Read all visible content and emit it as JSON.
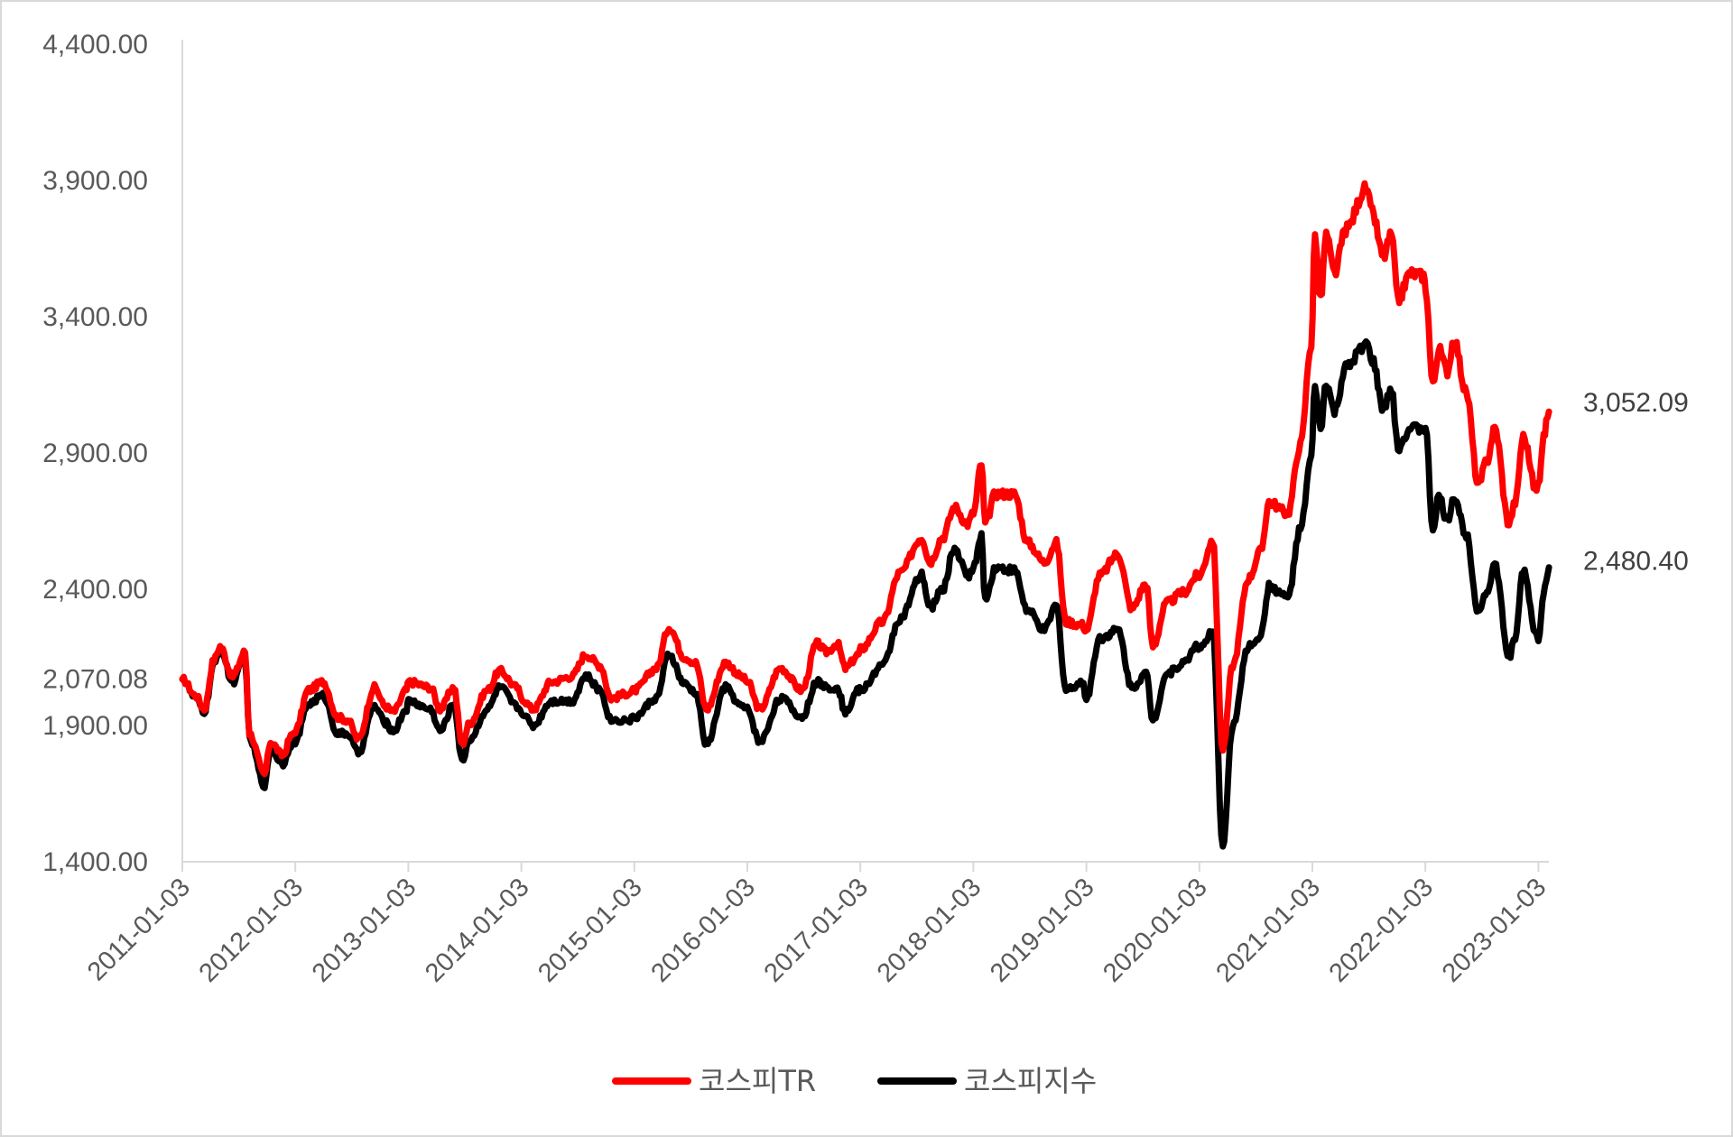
{
  "chart_data": {
    "type": "line",
    "title": "",
    "xlabel": "",
    "ylabel": "",
    "ylim": [
      1400,
      4400
    ],
    "y_ticks": [
      {
        "value": 4400,
        "label": "4,400.00"
      },
      {
        "value": 3900,
        "label": "3,900.00"
      },
      {
        "value": 3400,
        "label": "3,400.00"
      },
      {
        "value": 2900,
        "label": "2,900.00"
      },
      {
        "value": 2400,
        "label": "2,400.00"
      },
      {
        "value": 2070.08,
        "label": "2,070.08"
      },
      {
        "value": 1900,
        "label": "1,900.00"
      },
      {
        "value": 1400,
        "label": "1,400.00"
      }
    ],
    "x_ticks": [
      "2011-01-03",
      "2012-01-03",
      "2013-01-03",
      "2014-01-03",
      "2015-01-03",
      "2016-01-03",
      "2017-01-03",
      "2018-01-03",
      "2019-01-03",
      "2020-01-03",
      "2021-01-03",
      "2022-01-03",
      "2023-01-03"
    ],
    "legend_position": "bottom",
    "series": [
      {
        "name": "코스피TR",
        "color": "#ff0000",
        "end_label": "3,052.09",
        "points": [
          [
            "2011-01-03",
            2070
          ],
          [
            "2011-02-15",
            2010
          ],
          [
            "2011-03-15",
            1960
          ],
          [
            "2011-04-15",
            2140
          ],
          [
            "2011-05-05",
            2190
          ],
          [
            "2011-06-15",
            2080
          ],
          [
            "2011-07-25",
            2170
          ],
          [
            "2011-08-08",
            1870
          ],
          [
            "2011-09-26",
            1720
          ],
          [
            "2011-10-15",
            1840
          ],
          [
            "2011-11-25",
            1790
          ],
          [
            "2011-12-20",
            1860
          ],
          [
            "2012-01-03",
            1880
          ],
          [
            "2012-02-15",
            2030
          ],
          [
            "2012-04-02",
            2060
          ],
          [
            "2012-05-20",
            1930
          ],
          [
            "2012-06-20",
            1920
          ],
          [
            "2012-07-25",
            1850
          ],
          [
            "2012-09-15",
            2040
          ],
          [
            "2012-10-20",
            1970
          ],
          [
            "2012-11-15",
            1950
          ],
          [
            "2012-12-28",
            2030
          ],
          [
            "2013-01-03",
            2060
          ],
          [
            "2013-03-15",
            2040
          ],
          [
            "2013-04-15",
            1960
          ],
          [
            "2013-05-30",
            2040
          ],
          [
            "2013-06-25",
            1830
          ],
          [
            "2013-07-20",
            1910
          ],
          [
            "2013-09-15",
            2030
          ],
          [
            "2013-10-25",
            2100
          ],
          [
            "2013-12-20",
            2040
          ],
          [
            "2014-01-03",
            2000
          ],
          [
            "2014-02-10",
            1960
          ],
          [
            "2014-04-10",
            2060
          ],
          [
            "2014-06-15",
            2080
          ],
          [
            "2014-07-30",
            2160
          ],
          [
            "2014-09-15",
            2120
          ],
          [
            "2014-10-20",
            2000
          ],
          [
            "2014-12-20",
            2020
          ],
          [
            "2015-01-03",
            2030
          ],
          [
            "2015-03-15",
            2110
          ],
          [
            "2015-04-25",
            2260
          ],
          [
            "2015-06-15",
            2150
          ],
          [
            "2015-07-20",
            2130
          ],
          [
            "2015-08-24",
            1960
          ],
          [
            "2015-10-25",
            2130
          ],
          [
            "2015-12-15",
            2080
          ],
          [
            "2016-01-03",
            2060
          ],
          [
            "2016-02-12",
            1960
          ],
          [
            "2016-04-20",
            2110
          ],
          [
            "2016-06-28",
            2030
          ],
          [
            "2016-08-15",
            2200
          ],
          [
            "2016-09-15",
            2170
          ],
          [
            "2016-10-20",
            2200
          ],
          [
            "2016-11-15",
            2110
          ],
          [
            "2016-12-28",
            2160
          ],
          [
            "2017-01-03",
            2180
          ],
          [
            "2017-03-15",
            2280
          ],
          [
            "2017-05-10",
            2460
          ],
          [
            "2017-07-20",
            2590
          ],
          [
            "2017-08-15",
            2500
          ],
          [
            "2017-09-25",
            2590
          ],
          [
            "2017-11-03",
            2700
          ],
          [
            "2017-12-15",
            2640
          ],
          [
            "2018-01-03",
            2680
          ],
          [
            "2018-01-29",
            2860
          ],
          [
            "2018-02-10",
            2640
          ],
          [
            "2018-03-15",
            2750
          ],
          [
            "2018-05-15",
            2750
          ],
          [
            "2018-06-28",
            2570
          ],
          [
            "2018-08-20",
            2500
          ],
          [
            "2018-09-28",
            2570
          ],
          [
            "2018-10-29",
            2280
          ],
          [
            "2018-12-20",
            2270
          ],
          [
            "2019-01-03",
            2250
          ],
          [
            "2019-02-15",
            2450
          ],
          [
            "2019-04-15",
            2530
          ],
          [
            "2019-05-30",
            2330
          ],
          [
            "2019-07-15",
            2420
          ],
          [
            "2019-08-06",
            2190
          ],
          [
            "2019-09-20",
            2350
          ],
          [
            "2019-11-15",
            2390
          ],
          [
            "2019-12-28",
            2450
          ],
          [
            "2020-01-03",
            2450
          ],
          [
            "2020-02-15",
            2580
          ],
          [
            "2020-03-19",
            1810
          ],
          [
            "2020-04-20",
            2120
          ],
          [
            "2020-06-10",
            2440
          ],
          [
            "2020-07-20",
            2540
          ],
          [
            "2020-08-15",
            2720
          ],
          [
            "2020-10-15",
            2680
          ],
          [
            "2020-11-25",
            2930
          ],
          [
            "2020-12-30",
            3300
          ],
          [
            "2021-01-11",
            3700
          ],
          [
            "2021-01-29",
            3460
          ],
          [
            "2021-02-16",
            3700
          ],
          [
            "2021-03-15",
            3560
          ],
          [
            "2021-04-20",
            3720
          ],
          [
            "2021-06-25",
            3870
          ],
          [
            "2021-07-15",
            3780
          ],
          [
            "2021-08-20",
            3620
          ],
          [
            "2021-09-15",
            3700
          ],
          [
            "2021-10-06",
            3460
          ],
          [
            "2021-11-15",
            3560
          ],
          [
            "2021-12-28",
            3550
          ],
          [
            "2022-01-03",
            3510
          ],
          [
            "2022-01-27",
            3150
          ],
          [
            "2022-02-15",
            3280
          ],
          [
            "2022-03-15",
            3200
          ],
          [
            "2022-04-05",
            3320
          ],
          [
            "2022-05-15",
            3120
          ],
          [
            "2022-06-23",
            2780
          ],
          [
            "2022-07-20",
            2870
          ],
          [
            "2022-08-15",
            2990
          ],
          [
            "2022-09-30",
            2640
          ],
          [
            "2022-10-20",
            2720
          ],
          [
            "2022-11-15",
            2960
          ],
          [
            "2022-12-28",
            2760
          ],
          [
            "2023-01-03",
            2790
          ],
          [
            "2023-01-20",
            2960
          ],
          [
            "2023-02-06",
            3052.09
          ]
        ]
      },
      {
        "name": "코스피지수",
        "color": "#000000",
        "end_label": "2,480.40",
        "points": [
          [
            "2011-01-03",
            2070
          ],
          [
            "2011-02-15",
            2000
          ],
          [
            "2011-03-15",
            1950
          ],
          [
            "2011-04-15",
            2120
          ],
          [
            "2011-05-05",
            2180
          ],
          [
            "2011-06-15",
            2060
          ],
          [
            "2011-07-25",
            2150
          ],
          [
            "2011-08-08",
            1850
          ],
          [
            "2011-09-26",
            1680
          ],
          [
            "2011-10-15",
            1810
          ],
          [
            "2011-11-25",
            1760
          ],
          [
            "2011-12-20",
            1830
          ],
          [
            "2012-01-03",
            1840
          ],
          [
            "2012-02-15",
            1980
          ],
          [
            "2012-04-02",
            2010
          ],
          [
            "2012-05-20",
            1870
          ],
          [
            "2012-06-20",
            1870
          ],
          [
            "2012-07-25",
            1800
          ],
          [
            "2012-09-15",
            1970
          ],
          [
            "2012-10-20",
            1910
          ],
          [
            "2012-11-15",
            1880
          ],
          [
            "2012-12-28",
            1960
          ],
          [
            "2013-01-03",
            1990
          ],
          [
            "2013-03-15",
            1960
          ],
          [
            "2013-04-15",
            1880
          ],
          [
            "2013-05-30",
            1980
          ],
          [
            "2013-06-25",
            1770
          ],
          [
            "2013-07-20",
            1850
          ],
          [
            "2013-09-15",
            1960
          ],
          [
            "2013-10-25",
            2040
          ],
          [
            "2013-12-20",
            1970
          ],
          [
            "2014-01-03",
            1950
          ],
          [
            "2014-02-10",
            1900
          ],
          [
            "2014-04-10",
            1990
          ],
          [
            "2014-06-15",
            1990
          ],
          [
            "2014-07-30",
            2080
          ],
          [
            "2014-09-15",
            2030
          ],
          [
            "2014-10-20",
            1920
          ],
          [
            "2014-12-20",
            1920
          ],
          [
            "2015-01-03",
            1930
          ],
          [
            "2015-03-15",
            2000
          ],
          [
            "2015-04-25",
            2160
          ],
          [
            "2015-06-15",
            2050
          ],
          [
            "2015-07-20",
            2020
          ],
          [
            "2015-08-24",
            1830
          ],
          [
            "2015-10-25",
            2040
          ],
          [
            "2015-12-15",
            1970
          ],
          [
            "2016-01-03",
            1960
          ],
          [
            "2016-02-12",
            1840
          ],
          [
            "2016-04-20",
            2000
          ],
          [
            "2016-06-28",
            1930
          ],
          [
            "2016-08-15",
            2060
          ],
          [
            "2016-09-15",
            2040
          ],
          [
            "2016-10-20",
            2040
          ],
          [
            "2016-11-15",
            1950
          ],
          [
            "2016-12-28",
            2030
          ],
          [
            "2017-01-03",
            2030
          ],
          [
            "2017-03-15",
            2120
          ],
          [
            "2017-05-10",
            2290
          ],
          [
            "2017-07-20",
            2450
          ],
          [
            "2017-08-15",
            2330
          ],
          [
            "2017-09-25",
            2400
          ],
          [
            "2017-11-03",
            2550
          ],
          [
            "2017-12-15",
            2450
          ],
          [
            "2018-01-03",
            2480
          ],
          [
            "2018-01-29",
            2590
          ],
          [
            "2018-02-10",
            2360
          ],
          [
            "2018-03-15",
            2480
          ],
          [
            "2018-05-15",
            2470
          ],
          [
            "2018-06-28",
            2320
          ],
          [
            "2018-08-20",
            2250
          ],
          [
            "2018-09-28",
            2340
          ],
          [
            "2018-10-29",
            2030
          ],
          [
            "2018-12-20",
            2060
          ],
          [
            "2019-01-03",
            2000
          ],
          [
            "2019-02-15",
            2220
          ],
          [
            "2019-04-15",
            2250
          ],
          [
            "2019-05-30",
            2040
          ],
          [
            "2019-07-15",
            2090
          ],
          [
            "2019-08-06",
            1920
          ],
          [
            "2019-09-20",
            2090
          ],
          [
            "2019-11-15",
            2130
          ],
          [
            "2019-12-28",
            2200
          ],
          [
            "2020-01-03",
            2180
          ],
          [
            "2020-02-15",
            2240
          ],
          [
            "2020-03-19",
            1460
          ],
          [
            "2020-04-20",
            1900
          ],
          [
            "2020-06-10",
            2190
          ],
          [
            "2020-07-20",
            2230
          ],
          [
            "2020-08-15",
            2410
          ],
          [
            "2020-10-15",
            2370
          ],
          [
            "2020-11-25",
            2620
          ],
          [
            "2020-12-30",
            2880
          ],
          [
            "2021-01-11",
            3150
          ],
          [
            "2021-01-29",
            2980
          ],
          [
            "2021-02-16",
            3160
          ],
          [
            "2021-03-15",
            3050
          ],
          [
            "2021-04-20",
            3210
          ],
          [
            "2021-06-25",
            3300
          ],
          [
            "2021-07-15",
            3240
          ],
          [
            "2021-08-20",
            3060
          ],
          [
            "2021-09-15",
            3130
          ],
          [
            "2021-10-06",
            2920
          ],
          [
            "2021-11-15",
            2990
          ],
          [
            "2021-12-28",
            2990
          ],
          [
            "2022-01-03",
            2990
          ],
          [
            "2022-01-27",
            2620
          ],
          [
            "2022-02-15",
            2740
          ],
          [
            "2022-03-15",
            2650
          ],
          [
            "2022-04-05",
            2740
          ],
          [
            "2022-05-15",
            2600
          ],
          [
            "2022-06-23",
            2320
          ],
          [
            "2022-07-20",
            2390
          ],
          [
            "2022-08-15",
            2490
          ],
          [
            "2022-09-30",
            2150
          ],
          [
            "2022-10-20",
            2220
          ],
          [
            "2022-11-15",
            2470
          ],
          [
            "2022-12-28",
            2230
          ],
          [
            "2023-01-03",
            2220
          ],
          [
            "2023-01-20",
            2390
          ],
          [
            "2023-02-06",
            2480.4
          ]
        ]
      }
    ]
  }
}
